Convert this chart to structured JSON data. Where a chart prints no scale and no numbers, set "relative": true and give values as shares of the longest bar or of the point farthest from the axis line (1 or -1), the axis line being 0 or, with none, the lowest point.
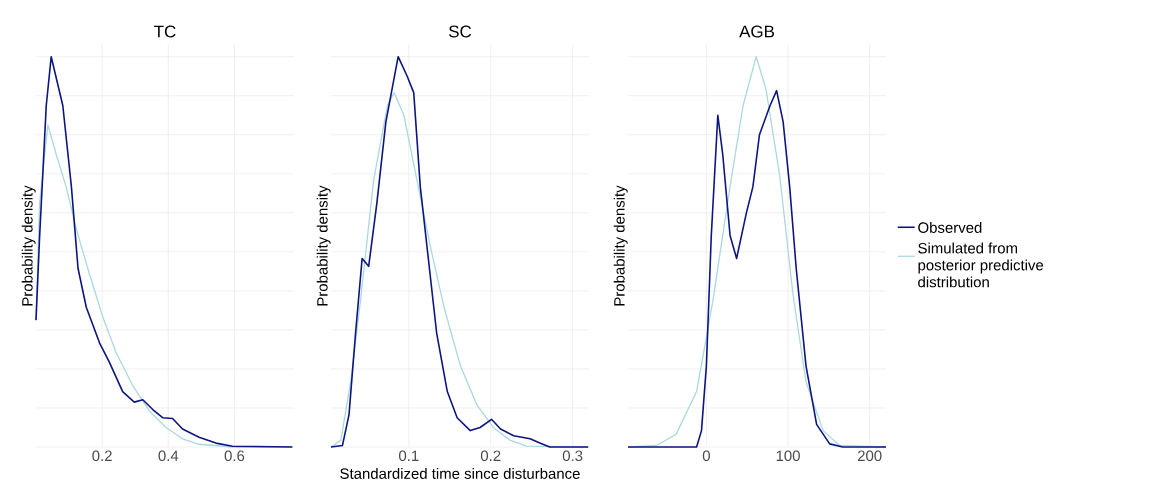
{
  "chart_data": [
    {
      "type": "line",
      "title": "TC",
      "ylabel": "Probability density",
      "relative": true,
      "xlim": [
        0,
        0.78
      ],
      "xticks": [
        0.2,
        0.4,
        0.6
      ],
      "grid": true,
      "tick_labels": "x",
      "marker": "none",
      "series": [
        {
          "color": "#aad8e0",
          "x": [
            0,
            0.011,
            0.036,
            0.061,
            0.091,
            0.122,
            0.162,
            0.202,
            0.242,
            0.292,
            0.343,
            0.393,
            0.443,
            0.493,
            0.594,
            0.775
          ],
          "values": [
            0.325,
            0.625,
            0.825,
            0.75,
            0.667,
            0.558,
            0.442,
            0.333,
            0.242,
            0.158,
            0.092,
            0.05,
            0.021,
            0.007,
            0,
            0
          ]
        },
        {
          "color": "#0d1580",
          "x": [
            0,
            0.011,
            0.031,
            0.046,
            0.081,
            0.107,
            0.127,
            0.152,
            0.192,
            0.222,
            0.262,
            0.297,
            0.323,
            0.353,
            0.383,
            0.413,
            0.443,
            0.493,
            0.544,
            0.594,
            0.775
          ],
          "values": [
            0.325,
            0.54,
            0.875,
            1,
            0.875,
            0.667,
            0.458,
            0.358,
            0.267,
            0.217,
            0.142,
            0.115,
            0.121,
            0.096,
            0.075,
            0.073,
            0.046,
            0.025,
            0.01,
            0.002,
            0
          ]
        }
      ]
    },
    {
      "type": "line",
      "title": "SC",
      "ylabel": "Probability density",
      "xlabel": "Standardized time since disturbance",
      "relative": true,
      "xlim": [
        0.005,
        0.32
      ],
      "xticks": [
        0.1,
        0.2,
        0.3
      ],
      "grid": true,
      "tick_labels": "x",
      "marker": "none",
      "series": [
        {
          "color": "#aad8e0",
          "x": [
            0.005,
            0.017,
            0.029,
            0.041,
            0.057,
            0.074,
            0.082,
            0.094,
            0.11,
            0.126,
            0.143,
            0.163,
            0.183,
            0.203,
            0.224,
            0.244,
            0.319
          ],
          "values": [
            0,
            0.017,
            0.167,
            0.375,
            0.683,
            0.875,
            0.908,
            0.85,
            0.683,
            0.517,
            0.358,
            0.208,
            0.108,
            0.05,
            0.017,
            0.002,
            0
          ]
        },
        {
          "color": "#0d1580",
          "x": [
            0.005,
            0.019,
            0.027,
            0.035,
            0.043,
            0.051,
            0.061,
            0.072,
            0.087,
            0.098,
            0.106,
            0.114,
            0.122,
            0.134,
            0.147,
            0.159,
            0.175,
            0.187,
            0.201,
            0.212,
            0.228,
            0.248,
            0.26,
            0.272,
            0.319
          ],
          "values": [
            0,
            0.004,
            0.083,
            0.292,
            0.483,
            0.463,
            0.625,
            0.833,
            1,
            0.95,
            0.908,
            0.667,
            0.517,
            0.292,
            0.142,
            0.075,
            0.042,
            0.05,
            0.071,
            0.046,
            0.029,
            0.021,
            0.01,
            0,
            0
          ]
        }
      ]
    },
    {
      "type": "line",
      "title": "AGB",
      "ylabel": "Probability density",
      "relative": true,
      "xlim": [
        -96,
        220
      ],
      "xticks": [
        0,
        100,
        200
      ],
      "grid": true,
      "tick_labels": "x",
      "marker": "none",
      "legend": "right",
      "series": [
        {
          "name": "Simulated from posterior predictive distribution",
          "color": "#aad8e0",
          "x": [
            -96,
            -61,
            -37,
            -12,
            8,
            29,
            45,
            61,
            73,
            90,
            106,
            122,
            143,
            163,
            220
          ],
          "values": [
            0,
            0.004,
            0.033,
            0.142,
            0.375,
            0.667,
            0.875,
            1,
            0.917,
            0.692,
            0.392,
            0.167,
            0.042,
            0.004,
            0
          ]
        },
        {
          "name": "Observed",
          "color": "#0d1580",
          "x": [
            -96,
            -12,
            -6,
            0,
            6,
            14,
            20,
            29,
            37,
            49,
            57,
            65,
            78,
            86,
            94,
            102,
            110,
            122,
            135,
            151,
            167,
            220
          ],
          "values": [
            0,
            0,
            0.042,
            0.208,
            0.542,
            0.85,
            0.75,
            0.542,
            0.483,
            0.6,
            0.667,
            0.8,
            0.875,
            0.913,
            0.833,
            0.667,
            0.458,
            0.208,
            0.058,
            0.008,
            0,
            0
          ]
        }
      ]
    }
  ]
}
